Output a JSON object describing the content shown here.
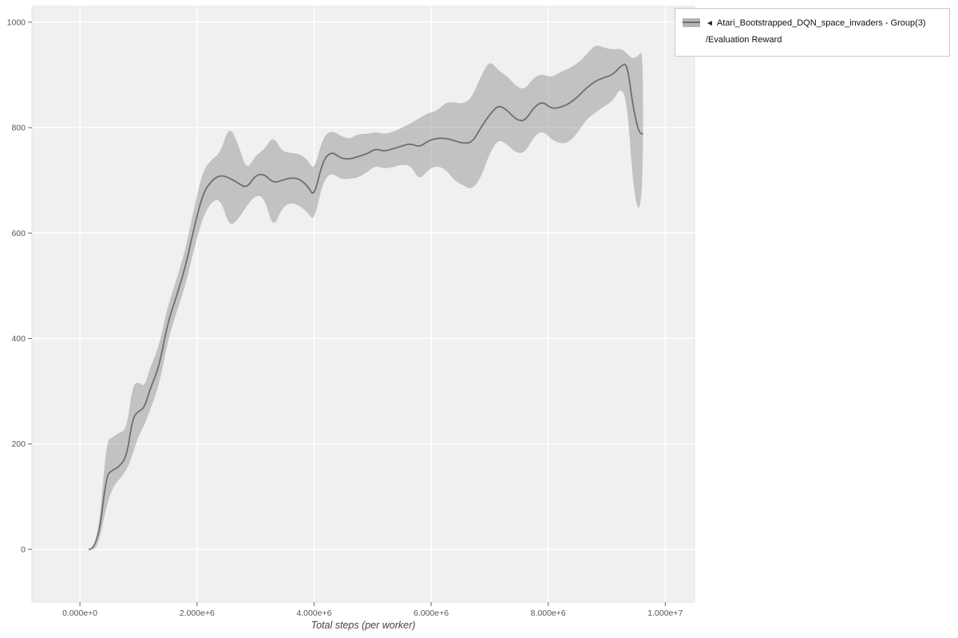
{
  "legend": {
    "collapse_icon": "◄",
    "series_name": "Atari_Bootstrapped_DQN_space_invaders - Group(3)",
    "series_metric": "/Evaluation Reward"
  },
  "colors": {
    "line": "#6e6e6e",
    "band": "rgba(130,130,130,0.42)",
    "band_legend": "#b5b5b5",
    "panel_bg": "#f0f0f0",
    "grid": "#ffffff",
    "panel_border": "#e3e3e3",
    "tick": "#666666",
    "tick_label": "#555555",
    "axis_label": "#444444",
    "legend_border": "#c9c9c9"
  },
  "chart_data": {
    "type": "line",
    "title": "",
    "xlabel": "Total steps (per worker)",
    "ylabel": "",
    "xlim": [
      -820000,
      10500000
    ],
    "ylim": [
      -100,
      1030
    ],
    "grid": true,
    "legend_position": "top-right-outside",
    "x_ticks": [
      0,
      2000000,
      4000000,
      6000000,
      8000000,
      10000000
    ],
    "x_tick_labels": [
      "0.000e+0",
      "2.000e+6",
      "4.000e+6",
      "6.000e+6",
      "8.000e+6",
      "1.000e+7"
    ],
    "y_ticks": [
      0,
      200,
      400,
      600,
      800,
      1000
    ],
    "y_tick_labels": [
      "0",
      "200",
      "400",
      "600",
      "800",
      "1000"
    ],
    "series": [
      {
        "name": "Atari_Bootstrapped_DQN_space_invaders - Group(3)/Evaluation Reward",
        "x": [
          150000,
          300000,
          450000,
          550000,
          650000,
          800000,
          900000,
          1000000,
          1100000,
          1200000,
          1350000,
          1500000,
          1650000,
          1800000,
          1950000,
          2100000,
          2250000,
          2400000,
          2550000,
          2700000,
          2850000,
          3000000,
          3150000,
          3300000,
          3450000,
          3600000,
          3750000,
          3900000,
          4000000,
          4150000,
          4300000,
          4450000,
          4600000,
          4750000,
          4900000,
          5050000,
          5200000,
          5350000,
          5500000,
          5650000,
          5800000,
          5950000,
          6100000,
          6250000,
          6400000,
          6550000,
          6700000,
          6850000,
          7000000,
          7150000,
          7300000,
          7450000,
          7600000,
          7750000,
          7900000,
          8050000,
          8200000,
          8350000,
          8500000,
          8650000,
          8800000,
          8950000,
          9100000,
          9250000,
          9350000,
          9450000,
          9550000,
          9620000
        ],
        "mean": [
          0,
          0,
          140,
          150,
          155,
          175,
          250,
          262,
          268,
          305,
          345,
          430,
          480,
          535,
          610,
          675,
          700,
          710,
          705,
          695,
          685,
          710,
          712,
          695,
          700,
          705,
          703,
          688,
          668,
          738,
          755,
          742,
          740,
          745,
          750,
          760,
          755,
          760,
          765,
          770,
          763,
          775,
          780,
          780,
          775,
          770,
          772,
          800,
          825,
          843,
          833,
          815,
          812,
          838,
          850,
          836,
          838,
          845,
          858,
          875,
          888,
          895,
          900,
          918,
          922,
          838,
          790,
          788
        ],
        "lower": [
          0,
          0,
          80,
          115,
          130,
          150,
          180,
          215,
          235,
          265,
          310,
          395,
          450,
          500,
          570,
          630,
          660,
          665,
          612,
          625,
          652,
          672,
          668,
          607,
          648,
          658,
          652,
          638,
          622,
          698,
          715,
          702,
          703,
          705,
          715,
          728,
          722,
          725,
          730,
          728,
          700,
          720,
          728,
          720,
          700,
          690,
          682,
          705,
          752,
          778,
          768,
          752,
          752,
          782,
          795,
          778,
          770,
          772,
          790,
          815,
          828,
          840,
          850,
          878,
          845,
          690,
          632,
          700
        ],
        "upper": [
          0,
          0,
          205,
          212,
          220,
          228,
          312,
          318,
          308,
          345,
          385,
          462,
          512,
          568,
          648,
          718,
          740,
          752,
          805,
          770,
          718,
          748,
          758,
          785,
          755,
          752,
          750,
          738,
          718,
          782,
          795,
          785,
          778,
          788,
          788,
          792,
          788,
          792,
          800,
          808,
          818,
          828,
          832,
          848,
          848,
          845,
          858,
          898,
          928,
          908,
          898,
          878,
          872,
          895,
          902,
          895,
          905,
          912,
          922,
          938,
          958,
          952,
          948,
          950,
          940,
          930,
          938,
          945
        ]
      }
    ]
  }
}
